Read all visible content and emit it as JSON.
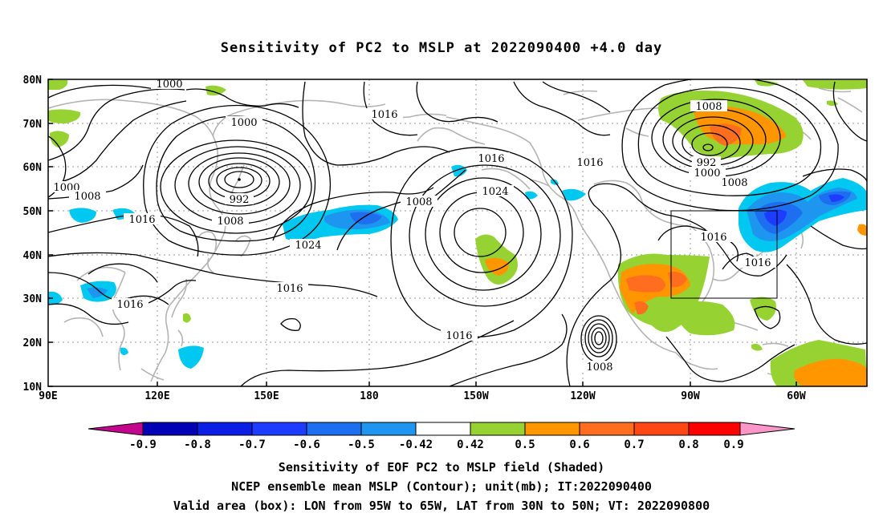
{
  "title": "Sensitivity of PC2 to MSLP at 2022090400 +4.0 day",
  "map": {
    "lat_ticks": [
      "80N",
      "70N",
      "60N",
      "50N",
      "40N",
      "30N",
      "20N",
      "10N"
    ],
    "lon_ticks": [
      "90E",
      "120E",
      "150E",
      "180",
      "150W",
      "120W",
      "90W",
      "60W"
    ],
    "valid_box": {
      "lon_from": "95W",
      "lon_to": "65W",
      "lat_from": "30N",
      "lat_to": "50N"
    }
  },
  "contour_labels": {
    "l1000a": "1000",
    "l1000b": "1000",
    "l1000c": "1000",
    "l1000d": "1000",
    "l1008a": "1008",
    "l1008b": "1008",
    "l1008c": "1008",
    "l1008d": "1008",
    "l1008e": "1008",
    "l1008f": "1008",
    "l1016a": "1016",
    "l1016b": "1016",
    "l1016c": "1016",
    "l1016d": "1016",
    "l1016e": "1016",
    "l1016f": "1016",
    "l1016g": "1016",
    "l1016h": "1016",
    "l1016i": "1016",
    "l1024a": "1024",
    "l1024b": "1024",
    "l992a": "992",
    "l992b": "992"
  },
  "colorbar": {
    "labels": [
      "-0.9",
      "-0.8",
      "-0.7",
      "-0.6",
      "-0.5",
      "-0.42",
      "0.42",
      "0.5",
      "0.6",
      "0.7",
      "0.8",
      "0.9"
    ],
    "colors": {
      "neg_tri": "#c4068e",
      "n1": "#0000b4",
      "n2": "#0a1ee6",
      "n3": "#1e3cff",
      "n4": "#1e6ef0",
      "n5": "#1e96f0",
      "n6": "#00c8f0",
      "mid": "#ffffff",
      "p1": "#96d232",
      "p2": "#ff9600",
      "p3": "#ff6e1e",
      "p4": "#ff4614",
      "p5": "#ff0000",
      "pos_tri": "#fa96c8"
    }
  },
  "footer": {
    "line1": "Sensitivity of EOF PC2 to MSLP field (Shaded)",
    "line2": "NCEP ensemble mean MSLP (Contour); unit(mb); IT:2022090400",
    "line3": "Valid area (box): LON from 95W to 65W, LAT from 30N to 50N; VT: 2022090800"
  }
}
